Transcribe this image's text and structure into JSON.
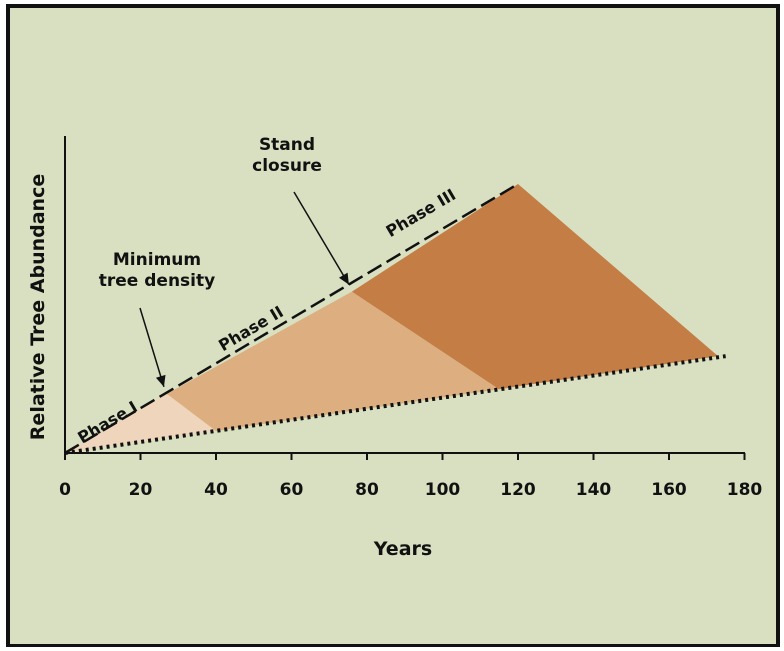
{
  "chart_data": {
    "type": "area",
    "xlabel": "Years",
    "ylabel": "Relative Tree Abundance",
    "xlim": [
      0,
      180
    ],
    "x_ticks": [
      "0",
      "20",
      "40",
      "60",
      "80",
      "100",
      "120",
      "140",
      "160",
      "180"
    ],
    "upper_line": {
      "style": "dashed",
      "points": [
        [
          0,
          0
        ],
        [
          120,
          1.0
        ]
      ]
    },
    "lower_line": {
      "style": "dotted",
      "points": [
        [
          0,
          0
        ],
        [
          175,
          0.36
        ]
      ]
    },
    "phases": [
      {
        "label": "Phase I",
        "color": "#eed5bc",
        "polygon": [
          [
            0,
            0
          ],
          [
            27,
            0.22
          ],
          [
            40,
            0.082
          ],
          [
            0,
            0
          ]
        ]
      },
      {
        "label": "Phase II",
        "color": "#dcae80",
        "polygon": [
          [
            27,
            0.22
          ],
          [
            76,
            0.6
          ],
          [
            115,
            0.237
          ],
          [
            40,
            0.082
          ]
        ]
      },
      {
        "label": "Phase III",
        "color": "#c47d44",
        "polygon": [
          [
            76,
            0.6
          ],
          [
            120,
            1.0
          ],
          [
            173,
            0.36
          ],
          [
            115,
            0.237
          ]
        ]
      }
    ],
    "annotations": [
      {
        "text_lines": [
          "Minimum",
          "tree density"
        ],
        "x": 27,
        "y": 0.22
      },
      {
        "text_lines": [
          "Stand",
          "closure"
        ],
        "x": 76,
        "y": 0.6
      }
    ]
  },
  "style": {
    "background": "#d8e0c1",
    "border": "#111111"
  }
}
